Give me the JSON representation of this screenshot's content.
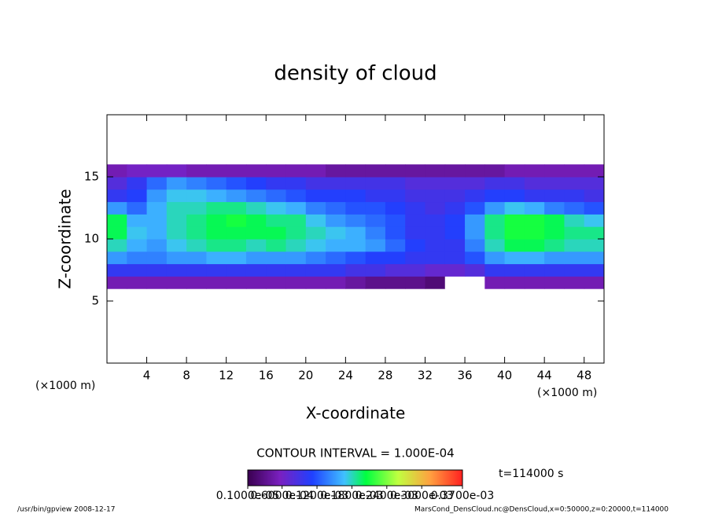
{
  "chart_data": {
    "type": "contour",
    "title": "density of cloud",
    "x_label": "X-coordinate",
    "y_label": "Z-coordinate",
    "x_unit": "(×1000 m)",
    "y_unit": "(×1000 m)",
    "xlim": [
      0,
      50
    ],
    "ylim": [
      0,
      20
    ],
    "xticks": [
      4,
      8,
      12,
      16,
      20,
      24,
      28,
      32,
      36,
      40,
      44,
      48
    ],
    "yticks": [
      5,
      10,
      15
    ],
    "contour_interval": "CONTOUR INTERVAL = 1.000E-04",
    "time_label": "t=114000 s",
    "footer_left": "/usr/bin/gpview  2008-12-17",
    "footer_right": "MarsCond_DensCloud.nc@DensCloud,x=0:50000,z=0:20000,t=114000",
    "colorbar": {
      "lim": [
        1e-06,
        0.00037
      ],
      "ticks": [
        {
          "value": 1e-06,
          "label": "0.1000e-05"
        },
        {
          "value": 6e-05,
          "label": "0.6000e-04"
        },
        {
          "value": 0.00012,
          "label": "0.1200e-03"
        },
        {
          "value": 0.00018,
          "label": "0.1800e-03"
        },
        {
          "value": 0.00024,
          "label": "0.2400e-03"
        },
        {
          "value": 0.0003,
          "label": "0.3000e-03"
        },
        {
          "value": 0.00037,
          "label": "0.3700e-03"
        }
      ]
    },
    "field": {
      "x": [
        1,
        3,
        5,
        7,
        9,
        11,
        13,
        15,
        17,
        19,
        21,
        23,
        25,
        27,
        29,
        31,
        33,
        35,
        37,
        39,
        41,
        43,
        45,
        47,
        49
      ],
      "z": [
        6.5,
        7.5,
        8.5,
        9.5,
        10.5,
        11.5,
        12.5,
        13.5,
        14.5,
        15.5
      ],
      "values": [
        [
          5e-05,
          5e-05,
          5e-05,
          5e-05,
          5e-05,
          5e-05,
          5e-05,
          5e-05,
          5e-05,
          5e-05,
          5e-05,
          5e-05,
          4e-05,
          3e-05,
          3e-05,
          3e-05,
          2e-05,
          0,
          0,
          5e-05,
          5e-05,
          5e-05,
          5e-05,
          5e-05,
          5e-05
        ],
        [
          0.0001,
          0.0001,
          0.0001,
          0.0001,
          0.0001,
          0.0001,
          0.0001,
          0.0001,
          0.0001,
          0.0001,
          0.0001,
          0.0001,
          9e-05,
          9e-05,
          8e-05,
          8e-05,
          7e-05,
          7e-05,
          8e-05,
          0.0001,
          0.0001,
          0.0001,
          0.0001,
          0.0001,
          0.0001
        ],
        [
          0.00015,
          0.00014,
          0.00014,
          0.00015,
          0.00015,
          0.00016,
          0.00016,
          0.00015,
          0.00015,
          0.00015,
          0.00014,
          0.00013,
          0.00012,
          0.00011,
          0.00011,
          0.0001,
          0.0001,
          0.0001,
          0.00012,
          0.00015,
          0.00016,
          0.00016,
          0.00015,
          0.00015,
          0.00015
        ],
        [
          0.00018,
          0.00016,
          0.00015,
          0.00017,
          0.00018,
          0.00019,
          0.00019,
          0.00018,
          0.00019,
          0.00018,
          0.00017,
          0.00016,
          0.00016,
          0.00015,
          0.00013,
          0.00011,
          0.0001,
          0.0001,
          0.00014,
          0.00018,
          0.0002,
          0.0002,
          0.00019,
          0.00018,
          0.00018
        ],
        [
          0.0002,
          0.00017,
          0.00016,
          0.00018,
          0.00019,
          0.0002,
          0.0002,
          0.0002,
          0.0002,
          0.00019,
          0.00018,
          0.00017,
          0.00016,
          0.00014,
          0.00012,
          0.0001,
          0.0001,
          0.00011,
          0.00015,
          0.00019,
          0.00021,
          0.00021,
          0.0002,
          0.00019,
          0.00019
        ],
        [
          0.0002,
          0.00016,
          0.00016,
          0.00018,
          0.00019,
          0.0002,
          0.00021,
          0.0002,
          0.00019,
          0.00019,
          0.00017,
          0.00015,
          0.00014,
          0.00013,
          0.00012,
          0.0001,
          0.0001,
          0.00011,
          0.00015,
          0.00019,
          0.00021,
          0.00021,
          0.0002,
          0.00018,
          0.00017
        ],
        [
          0.00015,
          0.00013,
          0.00016,
          0.00018,
          0.00018,
          0.00019,
          0.00019,
          0.00018,
          0.00017,
          0.00016,
          0.00014,
          0.00013,
          0.00012,
          0.00012,
          0.00011,
          0.0001,
          9e-05,
          0.0001,
          0.00012,
          0.00015,
          0.00017,
          0.00016,
          0.00014,
          0.00013,
          0.00012
        ],
        [
          0.0001,
          0.00011,
          0.00015,
          0.00017,
          0.00017,
          0.00016,
          0.00015,
          0.00014,
          0.00013,
          0.00012,
          0.00011,
          0.00011,
          0.00011,
          0.0001,
          0.0001,
          9e-05,
          9e-05,
          9e-05,
          0.0001,
          0.00011,
          0.00011,
          0.0001,
          0.0001,
          0.0001,
          9e-05
        ],
        [
          8e-05,
          0.0001,
          0.00013,
          0.00015,
          0.00014,
          0.00013,
          0.00012,
          0.00011,
          0.0001,
          0.0001,
          9e-05,
          9e-05,
          9e-05,
          9e-05,
          9e-05,
          8e-05,
          8e-05,
          8e-05,
          8e-05,
          9e-05,
          9e-05,
          8e-05,
          8e-05,
          8e-05,
          8e-05
        ],
        [
          5e-05,
          6e-05,
          6e-05,
          6e-05,
          5e-05,
          5e-05,
          5e-05,
          5e-05,
          5e-05,
          5e-05,
          5e-05,
          4e-05,
          4e-05,
          4e-05,
          4e-05,
          4e-05,
          4e-05,
          4e-05,
          4e-05,
          4e-05,
          5e-05,
          5e-05,
          5e-05,
          5e-05,
          5e-05
        ]
      ]
    }
  }
}
